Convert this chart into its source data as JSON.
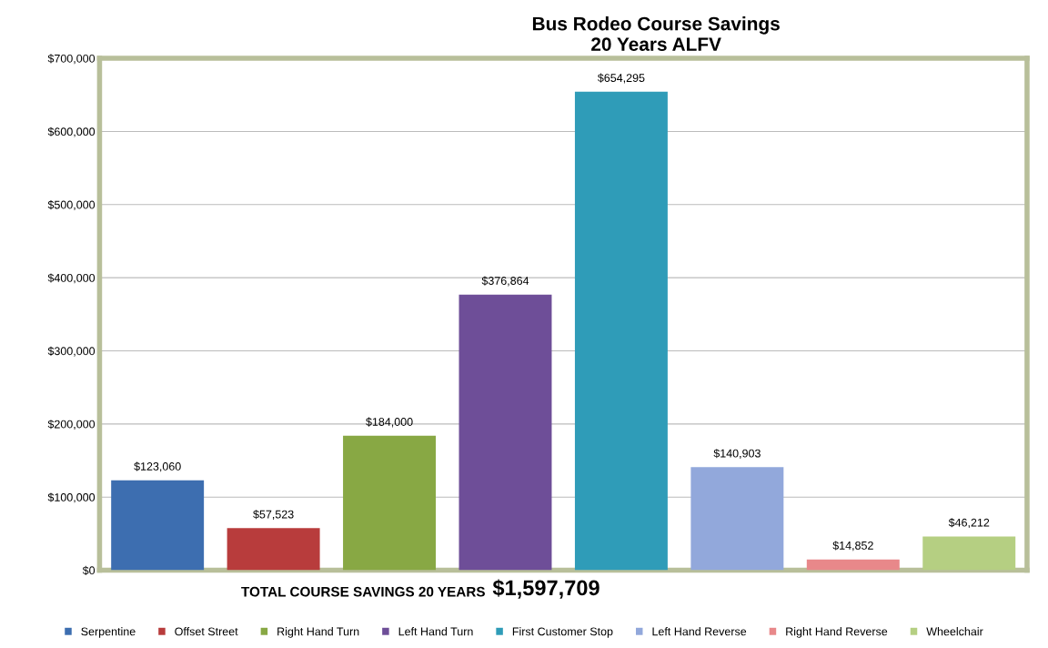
{
  "chart_data": {
    "type": "bar",
    "title": "Bus Rodeo Course Savings\n20 Years ALFV",
    "categories": [
      null,
      null,
      null,
      null,
      null,
      null,
      null,
      null
    ],
    "series": [
      {
        "name": "Serpentine",
        "color": "#3d6eb0",
        "values": [
          123060,
          null,
          null,
          null,
          null,
          null,
          null,
          null
        ],
        "value_labels": [
          "$123,060",
          null,
          null,
          null,
          null,
          null,
          null,
          null
        ]
      },
      {
        "name": "Offset Street",
        "color": "#b83c3c",
        "values": [
          null,
          57523,
          null,
          null,
          null,
          null,
          null,
          null
        ],
        "value_labels": [
          null,
          "$57,523",
          null,
          null,
          null,
          null,
          null,
          null
        ]
      },
      {
        "name": "Right Hand Turn",
        "color": "#88a844",
        "values": [
          null,
          null,
          184000,
          null,
          null,
          null,
          null,
          null
        ],
        "value_labels": [
          null,
          null,
          "$184,000",
          null,
          null,
          null,
          null,
          null
        ]
      },
      {
        "name": "Left Hand Turn",
        "color": "#6e4e98",
        "values": [
          null,
          null,
          null,
          376864,
          null,
          null,
          null,
          null
        ],
        "value_labels": [
          null,
          null,
          null,
          "$376,864",
          null,
          null,
          null,
          null
        ]
      },
      {
        "name": "First Customer Stop",
        "color": "#2f9cb8",
        "values": [
          null,
          null,
          null,
          null,
          654295,
          null,
          null,
          null
        ],
        "value_labels": [
          null,
          null,
          null,
          null,
          "$654,295",
          null,
          null,
          null
        ]
      },
      {
        "name": "Left Hand Reverse",
        "color": "#92a8db",
        "values": [
          null,
          null,
          null,
          null,
          null,
          140903,
          null,
          null
        ],
        "value_labels": [
          null,
          null,
          null,
          null,
          null,
          "$140,903",
          null,
          null
        ]
      },
      {
        "name": "Right Hand Reverse",
        "color": "#e8888a",
        "values": [
          null,
          null,
          null,
          null,
          null,
          null,
          14852,
          null
        ],
        "value_labels": [
          null,
          null,
          null,
          null,
          null,
          null,
          "$14,852",
          null
        ]
      },
      {
        "name": "Wheelchair",
        "color": "#b5cf82",
        "values": [
          null,
          null,
          null,
          null,
          null,
          null,
          null,
          46212
        ],
        "value_labels": [
          null,
          null,
          null,
          null,
          null,
          null,
          null,
          "$46,212"
        ]
      }
    ],
    "ylim": [
      0,
      700000
    ],
    "yticks": [
      {
        "value": 0,
        "label": "$0"
      },
      {
        "value": 100000,
        "label": "$100,000"
      },
      {
        "value": 200000,
        "label": "$200,000"
      },
      {
        "value": 300000,
        "label": "$300,000"
      },
      {
        "value": 400000,
        "label": "$400,000"
      },
      {
        "value": 500000,
        "label": "$500,000"
      },
      {
        "value": 600000,
        "label": "$600,000"
      },
      {
        "value": 700000,
        "label": "$700,000"
      }
    ],
    "grid": "y",
    "legend": "bottom",
    "annotations": [
      "TOTAL COURSE SAVINGS 20 YEARS",
      "$1,597,709"
    ]
  }
}
